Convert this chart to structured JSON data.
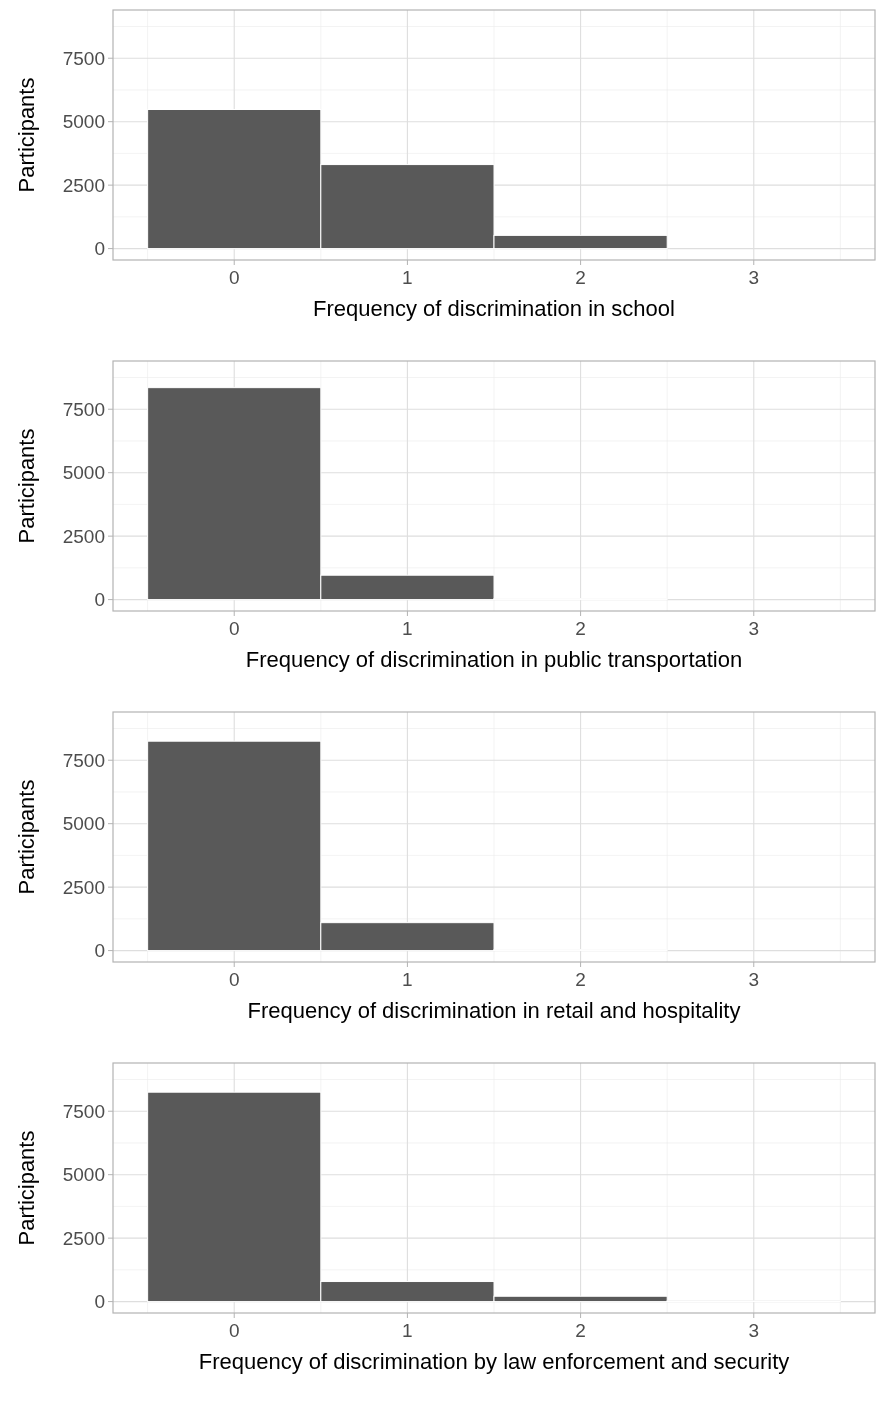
{
  "chart_data": [
    {
      "type": "histogram",
      "bins": [
        -0.5,
        0.5,
        1.5,
        2.5,
        3.5
      ],
      "values": [
        5480,
        3310,
        520,
        0
      ],
      "color": "#595959",
      "xlabel": "Frequency of discrimination in school",
      "ylabel": "Participants",
      "xlim": [
        -0.7,
        3.7
      ],
      "ylim": [
        -450,
        9400
      ],
      "xticks": [
        0,
        1,
        2,
        3
      ],
      "yticks": [
        0,
        2500,
        5000,
        7500
      ],
      "grid": true
    },
    {
      "type": "histogram",
      "bins": [
        -0.5,
        0.5,
        1.5,
        2.5,
        3.5
      ],
      "values": [
        8350,
        960,
        40,
        0
      ],
      "color": "#595959",
      "xlabel": "Frequency of discrimination in public transportation",
      "ylabel": "Participants",
      "xlim": [
        -0.7,
        3.7
      ],
      "ylim": [
        -450,
        9400
      ],
      "xticks": [
        0,
        1,
        2,
        3
      ],
      "yticks": [
        0,
        2500,
        5000,
        7500
      ],
      "grid": true
    },
    {
      "type": "histogram",
      "bins": [
        -0.5,
        0.5,
        1.5,
        2.5,
        3.5
      ],
      "values": [
        8250,
        1100,
        40,
        0
      ],
      "color": "#595959",
      "xlabel": "Frequency of discrimination in retail and hospitality",
      "ylabel": "Participants",
      "xlim": [
        -0.7,
        3.7
      ],
      "ylim": [
        -450,
        9400
      ],
      "xticks": [
        0,
        1,
        2,
        3
      ],
      "yticks": [
        0,
        2500,
        5000,
        7500
      ],
      "grid": true
    },
    {
      "type": "histogram",
      "bins": [
        -0.5,
        0.5,
        1.5,
        2.5,
        3.5
      ],
      "values": [
        8250,
        790,
        210,
        30
      ],
      "color": "#595959",
      "xlabel": "Frequency of discrimination by law enforcement and security",
      "ylabel": "Participants",
      "xlim": [
        -0.7,
        3.7
      ],
      "ylim": [
        -450,
        9400
      ],
      "xticks": [
        0,
        1,
        2,
        3
      ],
      "yticks": [
        0,
        2500,
        5000,
        7500
      ],
      "grid": true
    }
  ]
}
